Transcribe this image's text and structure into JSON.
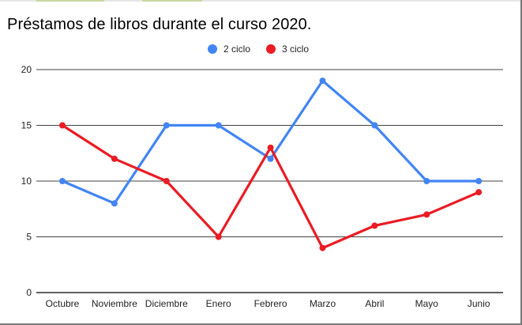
{
  "colors": {
    "series_1": "#4285f4",
    "series_2": "#ea1c24",
    "grid": "#000000"
  },
  "chart_data": {
    "type": "line",
    "title": "Préstamos de libros durante el curso 2020.",
    "xlabel": "",
    "ylabel": "",
    "categories": [
      "Octubre",
      "Noviembre",
      "Diciembre",
      "Enero",
      "Febrero",
      "Marzo",
      "Abril",
      "Mayo",
      "Junio"
    ],
    "series": [
      {
        "name": "2 ciclo",
        "values": [
          10,
          8,
          15,
          15,
          12,
          19,
          15,
          10,
          10
        ]
      },
      {
        "name": "3 ciclo",
        "values": [
          15,
          12,
          10,
          5,
          13,
          4,
          6,
          7,
          9
        ]
      }
    ],
    "ylim": [
      0,
      20
    ],
    "yticks": [
      0,
      5,
      10,
      15,
      20
    ],
    "grid": true,
    "legend_position": "top-center"
  }
}
